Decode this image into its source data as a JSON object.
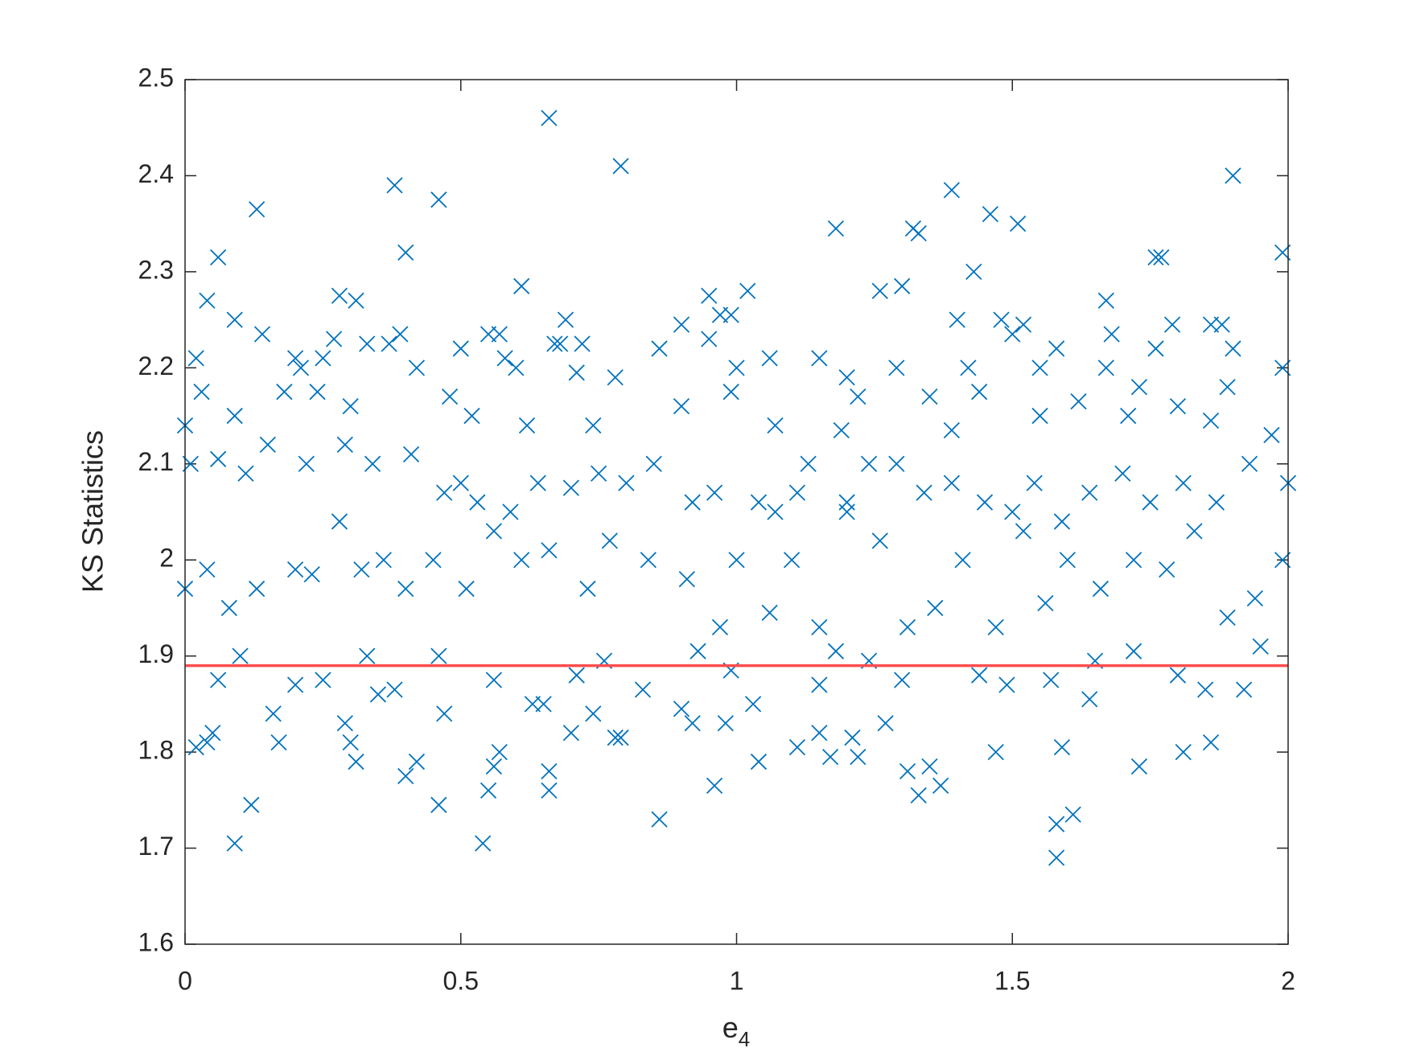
{
  "chart_data": {
    "type": "scatter",
    "ylabel": "KS Statistics",
    "xlabel": {
      "base": "e",
      "subscript": "4"
    },
    "xlim": [
      0,
      2
    ],
    "ylim": [
      1.6,
      2.5
    ],
    "xticks": [
      0,
      0.5,
      1,
      1.5,
      2
    ],
    "yticks": [
      1.6,
      1.7,
      1.8,
      1.9,
      2,
      2.1,
      2.2,
      2.3,
      2.4,
      2.5
    ],
    "color": "#0072bd",
    "marker": "x",
    "hline": {
      "y": 1.89,
      "color": "#ff4d4d"
    },
    "x": [
      0.66,
      0.79,
      1.9,
      0.38,
      1.39,
      0.13,
      0.46,
      1.46,
      1.51,
      1.18,
      1.32,
      1.33,
      0.4,
      0.06,
      1.76,
      1.77,
      1.99,
      1.43,
      0.61,
      1.02,
      1.26,
      1.3,
      0.04,
      0.28,
      0.31,
      0.95,
      1.67,
      0.09,
      0.69,
      0.97,
      0.99,
      1.4,
      1.48,
      1.52,
      1.79,
      1.86,
      1.88,
      0.14,
      0.27,
      0.33,
      0.37,
      0.39,
      0.55,
      0.57,
      0.67,
      0.68,
      0.72,
      0.86,
      0.9,
      0.95,
      1.5,
      1.58,
      1.68,
      1.76,
      1.9,
      0.02,
      0.2,
      0.21,
      0.25,
      0.42,
      0.5,
      0.58,
      0.6,
      0.71,
      0.78,
      1.0,
      1.06,
      1.15,
      1.2,
      1.29,
      1.42,
      1.55,
      1.67,
      1.89,
      1.99,
      0.03,
      0.18,
      0.24,
      0.48,
      0.99,
      1.22,
      1.35,
      1.44,
      1.62,
      1.73,
      1.8,
      0.09,
      0.3,
      0.52,
      0.62,
      0.74,
      0.9,
      1.07,
      1.19,
      1.39,
      1.55,
      1.71,
      1.86,
      1.97,
      0.0,
      0.01,
      0.06,
      0.11,
      0.15,
      0.22,
      0.29,
      0.34,
      0.41,
      0.47,
      0.5,
      0.53,
      0.59,
      0.64,
      0.7,
      0.75,
      0.8,
      0.85,
      0.92,
      0.96,
      1.04,
      1.07,
      1.11,
      1.13,
      1.2,
      1.24,
      1.29,
      1.34,
      1.39,
      1.45,
      1.5,
      1.54,
      1.59,
      1.64,
      1.7,
      1.75,
      1.81,
      1.87,
      1.93,
      2.0,
      0.0,
      0.04,
      0.08,
      0.13,
      0.2,
      0.23,
      0.28,
      0.32,
      0.36,
      0.4,
      0.45,
      0.51,
      0.56,
      0.61,
      0.66,
      0.73,
      0.77,
      0.84,
      0.91,
      0.97,
      1.0,
      1.06,
      1.1,
      1.15,
      1.2,
      1.26,
      1.31,
      1.36,
      1.41,
      1.47,
      1.52,
      1.56,
      1.6,
      1.66,
      1.72,
      1.78,
      1.83,
      1.89,
      1.94,
      1.99,
      0.02,
      0.04,
      0.05,
      0.09,
      0.12,
      0.16,
      0.17,
      0.2,
      0.3,
      0.29,
      0.31,
      0.35,
      0.4,
      0.42,
      0.46,
      0.47,
      0.54,
      0.55,
      0.57,
      0.56,
      0.63,
      0.65,
      0.66,
      0.66,
      0.7,
      0.74,
      0.78,
      0.79,
      0.83,
      0.86,
      0.9,
      0.92,
      0.96,
      0.98,
      1.03,
      1.04,
      1.11,
      1.15,
      1.17,
      1.21,
      1.22,
      1.27,
      1.31,
      1.33,
      1.35,
      1.37,
      1.47,
      1.58,
      1.58,
      1.59,
      1.61,
      1.64,
      1.73,
      1.81,
      1.86,
      1.92,
      0.06,
      0.25,
      0.38,
      0.56,
      0.71,
      0.99,
      1.15,
      1.3,
      1.44,
      1.49,
      1.57,
      1.8,
      1.85,
      0.1,
      0.33,
      0.46,
      0.76,
      0.93,
      1.18,
      1.24,
      1.65,
      1.72,
      1.95
    ],
    "values": [
      2.46,
      2.41,
      2.4,
      2.39,
      2.385,
      2.365,
      2.375,
      2.36,
      2.35,
      2.345,
      2.345,
      2.34,
      2.32,
      2.315,
      2.315,
      2.315,
      2.32,
      2.3,
      2.285,
      2.28,
      2.28,
      2.285,
      2.27,
      2.275,
      2.27,
      2.275,
      2.27,
      2.25,
      2.25,
      2.255,
      2.255,
      2.25,
      2.25,
      2.245,
      2.245,
      2.245,
      2.245,
      2.235,
      2.23,
      2.225,
      2.225,
      2.235,
      2.235,
      2.235,
      2.225,
      2.225,
      2.225,
      2.22,
      2.245,
      2.23,
      2.235,
      2.22,
      2.235,
      2.22,
      2.22,
      2.21,
      2.21,
      2.2,
      2.21,
      2.2,
      2.22,
      2.21,
      2.2,
      2.195,
      2.19,
      2.2,
      2.21,
      2.21,
      2.19,
      2.2,
      2.2,
      2.2,
      2.2,
      2.18,
      2.2,
      2.175,
      2.175,
      2.175,
      2.17,
      2.175,
      2.17,
      2.17,
      2.175,
      2.165,
      2.18,
      2.16,
      2.15,
      2.16,
      2.15,
      2.14,
      2.14,
      2.16,
      2.14,
      2.135,
      2.135,
      2.15,
      2.15,
      2.145,
      2.13,
      2.14,
      2.1,
      2.105,
      2.09,
      2.12,
      2.1,
      2.12,
      2.1,
      2.11,
      2.07,
      2.08,
      2.06,
      2.05,
      2.08,
      2.075,
      2.09,
      2.08,
      2.1,
      2.06,
      2.07,
      2.06,
      2.05,
      2.07,
      2.1,
      2.06,
      2.1,
      2.1,
      2.07,
      2.08,
      2.06,
      2.05,
      2.08,
      2.04,
      2.07,
      2.09,
      2.06,
      2.08,
      2.06,
      2.1,
      2.08,
      1.97,
      1.99,
      1.95,
      1.97,
      1.99,
      1.985,
      2.04,
      1.99,
      2,
      1.97,
      2,
      1.97,
      2.03,
      2,
      2.01,
      1.97,
      2.02,
      2,
      1.98,
      1.93,
      2,
      1.945,
      2,
      1.93,
      2.05,
      2.02,
      1.93,
      1.95,
      2,
      1.93,
      2.03,
      1.955,
      2,
      1.97,
      2,
      1.99,
      2.03,
      1.94,
      1.96,
      2,
      1.805,
      1.81,
      1.82,
      1.705,
      1.745,
      1.84,
      1.81,
      1.87,
      1.81,
      1.83,
      1.79,
      1.86,
      1.775,
      1.79,
      1.745,
      1.84,
      1.705,
      1.76,
      1.8,
      1.785,
      1.85,
      1.85,
      1.76,
      1.78,
      1.82,
      1.84,
      1.815,
      1.815,
      1.865,
      1.73,
      1.845,
      1.83,
      1.765,
      1.83,
      1.85,
      1.79,
      1.805,
      1.82,
      1.795,
      1.815,
      1.795,
      1.83,
      1.78,
      1.755,
      1.785,
      1.765,
      1.8,
      1.69,
      1.725,
      1.805,
      1.735,
      1.855,
      1.785,
      1.8,
      1.81,
      1.865,
      1.875,
      1.875,
      1.865,
      1.875,
      1.88,
      1.885,
      1.87,
      1.875,
      1.88,
      1.87,
      1.875,
      1.88,
      1.865,
      1.9,
      1.9,
      1.9,
      1.895,
      1.905,
      1.905,
      1.895,
      1.895,
      1.905,
      1.91
    ]
  }
}
